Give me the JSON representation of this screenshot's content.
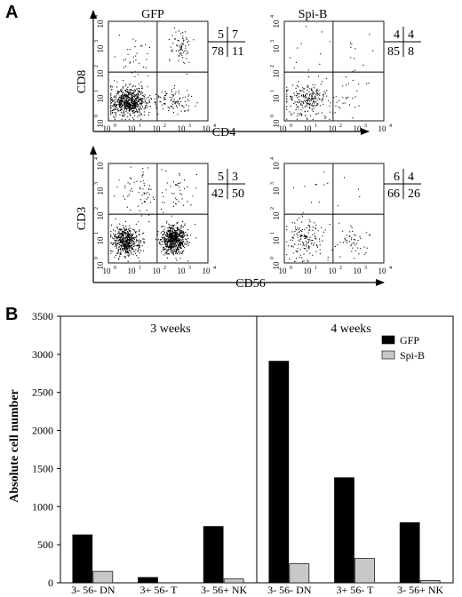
{
  "panel_a": {
    "letter": "A",
    "plots": [
      {
        "title": "GFP",
        "quadrants": [
          "5",
          "7",
          "78",
          "11"
        ],
        "dots": 900,
        "pattern": "gfp-cd4cd8"
      },
      {
        "title": "Spi-B",
        "quadrants": [
          "4",
          "4",
          "85",
          "8"
        ],
        "dots": 300,
        "pattern": "spib-cd4cd8"
      },
      {
        "title": "",
        "quadrants": [
          "5",
          "3",
          "42",
          "50"
        ],
        "dots": 1300,
        "pattern": "gfp-cd3cd56"
      },
      {
        "title": "",
        "quadrants": [
          "6",
          "4",
          "66",
          "26"
        ],
        "dots": 220,
        "pattern": "spib-cd3cd56"
      }
    ],
    "tick_base": "10",
    "tick_exps": [
      "0",
      "1",
      "2",
      "3",
      "4"
    ],
    "top_ylabel": "CD8",
    "top_xlabel": "CD4",
    "bottom_ylabel": "CD3",
    "bottom_xlabel": "CD56"
  },
  "panel_b": {
    "letter": "B"
  },
  "chart_data": {
    "type": "bar",
    "title": "",
    "ylabel": "Absolute cell number",
    "xlabel": "",
    "ylim": [
      0,
      3500
    ],
    "yticks": [
      "0",
      "500",
      "1000",
      "1500",
      "2000",
      "2500",
      "3000",
      "3500"
    ],
    "groups": [
      "3 weeks",
      "4 weeks"
    ],
    "categories": [
      "3- 56- DN",
      "3+ 56- T",
      "3- 56+ NK",
      "3- 56- DN",
      "3+ 56- T",
      "3- 56+ NK"
    ],
    "series": [
      {
        "name": "GFP",
        "color": "#000000",
        "values": [
          630,
          70,
          740,
          2910,
          1380,
          790
        ]
      },
      {
        "name": "Spi-B",
        "color": "#c8c8c8",
        "values": [
          150,
          0,
          50,
          250,
          320,
          30
        ]
      }
    ],
    "legend_position": "top-right",
    "grid": false
  }
}
